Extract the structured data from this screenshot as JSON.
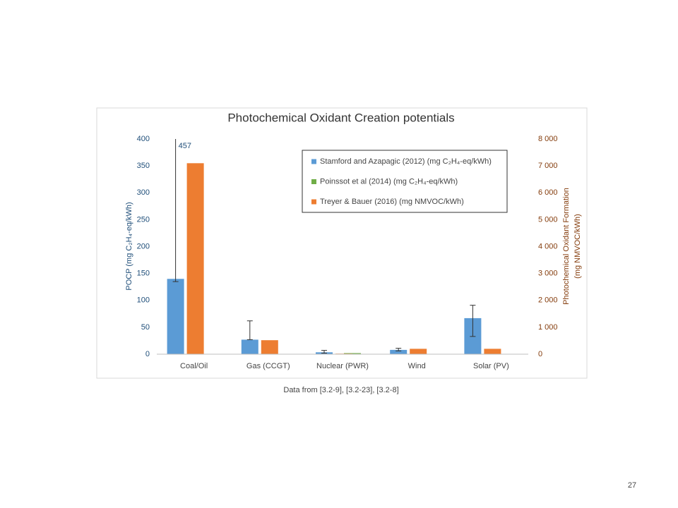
{
  "chart_data": {
    "type": "bar",
    "title": "Photochemical Oxidant Creation potentials",
    "ylabel": "POCP (mg C₂H₄-eq/kWh)",
    "y2label": [
      "Photochemical Oxidant Formation",
      "(mg NMVOC/kWh)"
    ],
    "categories": [
      "Coal/Oil",
      "Gas (CCGT)",
      "Nuclear (PWR)",
      "Wind",
      "Solar (PV)"
    ],
    "series": [
      {
        "name": "Stamford and Azapagic (2012) (mg C₂H₄-eq/kWh)",
        "color": "#5b9bd5",
        "values": [
          140,
          27,
          3.5,
          8,
          67
        ],
        "error_low": [
          135,
          27,
          2,
          6,
          33
        ],
        "error_high": [
          457,
          62,
          7,
          11,
          91
        ]
      },
      {
        "name": "Poinssot et al (2014) (mg C₂H₄-eq/kWh)",
        "color": "#70ad47",
        "values": [
          null,
          null,
          2,
          null,
          null
        ]
      },
      {
        "name": "Treyer & Bauer (2016) (mg NMVOC/kWh)",
        "color": "#ed7d31",
        "axis": "y2",
        "values": [
          7100,
          520,
          20,
          200,
          200
        ]
      }
    ],
    "ylim": [
      0,
      400
    ],
    "yticks": [
      0,
      50,
      100,
      150,
      200,
      250,
      300,
      350,
      400
    ],
    "y2lim": [
      0,
      8000
    ],
    "y2ticks": [
      {
        "value": 0,
        "label": "0"
      },
      {
        "value": 1000,
        "label": "1 000"
      },
      {
        "value": 2000,
        "label": "2 000"
      },
      {
        "value": 3000,
        "label": "3 000"
      },
      {
        "value": 4000,
        "label": "4 000"
      },
      {
        "value": 5000,
        "label": "5 000"
      },
      {
        "value": 6000,
        "label": "6 000"
      },
      {
        "value": 7000,
        "label": "7 000"
      },
      {
        "value": 8000,
        "label": "8 000"
      }
    ],
    "grid": false
  },
  "caption": "Data from [3.2-9], [3.2-23], [3.2-8]",
  "page_number": "27"
}
